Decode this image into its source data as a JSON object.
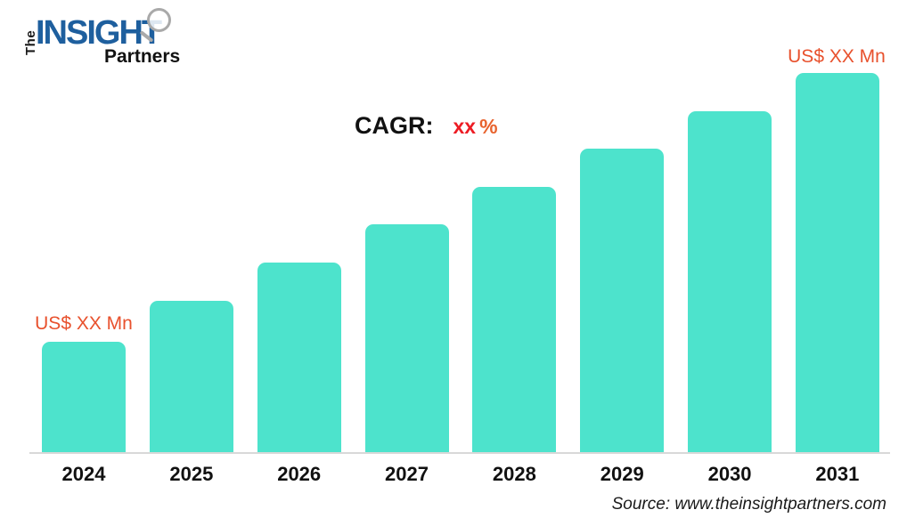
{
  "logo": {
    "the": "The",
    "insight": "INSIGHT",
    "partners": "Partners"
  },
  "cagr": {
    "label": "CAGR:",
    "value": "xx",
    "percent_sign": "%"
  },
  "chart_data": {
    "type": "bar",
    "title": "",
    "xlabel": "",
    "ylabel": "",
    "categories": [
      "2024",
      "2025",
      "2026",
      "2027",
      "2028",
      "2029",
      "2030",
      "2031"
    ],
    "relative_heights_pct": [
      29,
      40,
      50,
      60,
      70,
      80,
      90,
      100
    ],
    "first_bar_label": "US$ XX Mn",
    "last_bar_label": "US$ XX Mn",
    "bar_color": "#4DE3CC",
    "grid": false,
    "legend": false,
    "axis_line_color": "#D8D8D8"
  },
  "source": "Source: www.theinsightpartners.com",
  "colors": {
    "bar": "#4DE3CC",
    "value_label": "#E8512D",
    "cagr_value": "#ED1C24",
    "cagr_percent": "#E8632E",
    "logo_blue": "#1E5F9E",
    "logo_gray": "#A9A9A9",
    "axis_line": "#D8D8D8",
    "text": "#111111"
  }
}
